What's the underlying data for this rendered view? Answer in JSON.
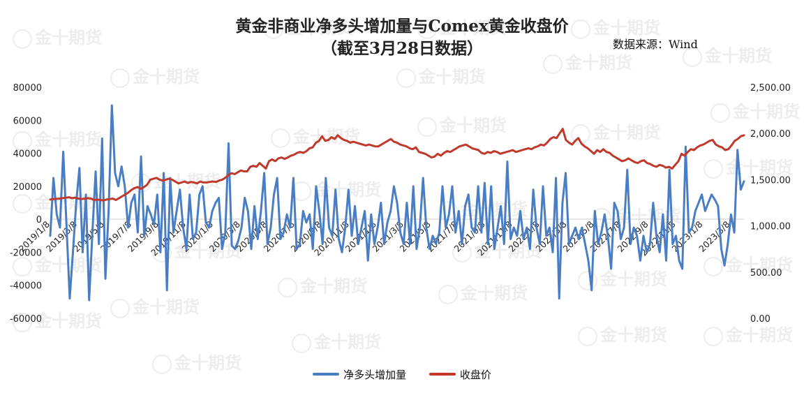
{
  "title_line1": "黄金非商业净多头增加量与Comex黄金收盘价",
  "title_line2": "（截至3月28日数据）",
  "source": "数据来源：Wind",
  "watermark": "金十期货",
  "colors": {
    "blue": "#4a7ec4",
    "red": "#c0392b"
  },
  "chart_data": {
    "type": "line",
    "title": "黄金非商业净多头增加量与Comex黄金收盘价",
    "subtitle": "（截至3月28日数据）",
    "xlabel": "",
    "ylabel": "",
    "legend_position": "bottom",
    "grid": false,
    "x_tick_labels": [
      "2019/1/8",
      "2019/3/8",
      "2019/5/8",
      "2019/7/8",
      "2019/9/8",
      "2019/11/8",
      "2020/1/8",
      "2020/3/8",
      "2020/5/8",
      "2020/7/8",
      "2020/9/8",
      "2020/11/8",
      "2021/1/8",
      "2021/3/8",
      "2021/5/8",
      "2021/7/8",
      "2021/9/8",
      "2021/11/8",
      "2022/1/8",
      "2022/3/8",
      "2022/5/8",
      "2022/7/8",
      "2022/9/8",
      "2022/11/8",
      "2023/1/8",
      "2023/3/8"
    ],
    "y_left": {
      "ylim": [
        -60000,
        80000
      ],
      "ticks": [
        "80000",
        "60000",
        "40000",
        "20000",
        "0",
        "-20000",
        "-40000",
        "-60000"
      ]
    },
    "y_right": {
      "ylim": [
        0,
        2500
      ],
      "ticks": [
        "2,500.00",
        "2,000.00",
        "1,500.00",
        "1,000.00",
        "500.00",
        "0.00"
      ]
    },
    "series": [
      {
        "name": "净多头增加量",
        "axis": "left",
        "color": "#4a7ec4",
        "values": [
          -10000,
          25000,
          3000,
          -5000,
          41000,
          -3000,
          -48000,
          -20000,
          10000,
          31000,
          -20000,
          15000,
          -49000,
          -8000,
          29000,
          -15000,
          49000,
          -36000,
          5000,
          69000,
          28000,
          20000,
          32000,
          20000,
          -5000,
          10000,
          15000,
          -8000,
          38000,
          -10000,
          8000,
          3000,
          -3000,
          15000,
          -20000,
          28000,
          -43000,
          25000,
          -8000,
          5000,
          18000,
          -5000,
          -18000,
          15000,
          -12000,
          -8000,
          15000,
          20000,
          -2000,
          -5000,
          5000,
          10000,
          13000,
          -18000,
          -8000,
          46000,
          -16000,
          -18000,
          -13000,
          -5000,
          13000,
          5000,
          -18000,
          8000,
          -12000,
          5000,
          28000,
          -15000,
          -5000,
          15000,
          25000,
          -12000,
          -8000,
          3000,
          -5000,
          25000,
          -18000,
          -15000,
          5000,
          -2000,
          3000,
          -18000,
          20000,
          5000,
          -15000,
          25000,
          -5000,
          -10000,
          18000,
          -12000,
          -20000,
          -5000,
          18000,
          -10000,
          8000,
          -15000,
          -5000,
          5000,
          -25000,
          3000,
          -15000,
          -5000,
          10000,
          -15000,
          -2000,
          5000,
          20000,
          10000,
          -8000,
          -15000,
          10000,
          -15000,
          20000,
          -18000,
          -5000,
          25000,
          -5000,
          -18000,
          -10000,
          -15000,
          -8000,
          20000,
          -5000,
          3000,
          20000,
          -8000,
          5000,
          -15000,
          8000,
          15000,
          -5000,
          -8000,
          20000,
          -8000,
          22000,
          -15000,
          20000,
          -18000,
          -5000,
          8000,
          -15000,
          35000,
          -12000,
          -5000,
          -10000,
          5000,
          -12000,
          -5000,
          -18000,
          18000,
          -5000,
          -15000,
          20000,
          -10000,
          -5000,
          -20000,
          25000,
          -48000,
          10000,
          28000,
          -15000,
          -10000,
          -5000,
          -12000,
          -5000,
          -15000,
          -25000,
          -43000,
          5000,
          -15000,
          -8000,
          3000,
          -10000,
          -30000,
          10000,
          5000,
          -12000,
          -5000,
          30000,
          -15000,
          -5000,
          -10000,
          -25000,
          -10000,
          -20000,
          -15000,
          10000,
          -10000,
          -20000,
          3000,
          -25000,
          30000,
          -15000,
          -10000,
          -25000,
          -30000,
          44000,
          -8000,
          -5000,
          5000,
          10000,
          15000,
          5000,
          10000,
          15000,
          12000,
          8000,
          -18000,
          -28000,
          -15000,
          3000,
          -8000,
          42000,
          18000,
          23000
        ]
      },
      {
        "name": "收盘价",
        "axis": "right",
        "color": "#c0392b",
        "values": [
          1285,
          1290,
          1292,
          1295,
          1300,
          1305,
          1310,
          1300,
          1305,
          1295,
          1290,
          1295,
          1300,
          1295,
          1280,
          1285,
          1280,
          1275,
          1285,
          1290,
          1295,
          1280,
          1300,
          1320,
          1340,
          1360,
          1390,
          1410,
          1420,
          1400,
          1420,
          1445,
          1500,
          1510,
          1520,
          1500,
          1490,
          1500,
          1510,
          1500,
          1480,
          1460,
          1470,
          1480,
          1465,
          1475,
          1470,
          1460,
          1480,
          1470,
          1470,
          1475,
          1480,
          1475,
          1490,
          1500,
          1520,
          1550,
          1570,
          1560,
          1580,
          1600,
          1590,
          1590,
          1640,
          1650,
          1640,
          1680,
          1650,
          1620,
          1700,
          1720,
          1700,
          1730,
          1740,
          1725,
          1740,
          1760,
          1770,
          1790,
          1800,
          1790,
          1810,
          1840,
          1850,
          1900,
          1920,
          1970,
          1920,
          1930,
          1960,
          1940,
          1980,
          1950,
          1930,
          1920,
          1900,
          1910,
          1900,
          1890,
          1880,
          1870,
          1880,
          1870,
          1860,
          1860,
          1880,
          1900,
          1920,
          1940,
          1910,
          1900,
          1880,
          1870,
          1860,
          1840,
          1830,
          1850,
          1800,
          1790,
          1780,
          1760,
          1740,
          1750,
          1780,
          1760,
          1790,
          1810,
          1800,
          1820,
          1840,
          1860,
          1870,
          1880,
          1860,
          1840,
          1830,
          1820,
          1790,
          1780,
          1800,
          1790,
          1810,
          1800,
          1780,
          1790,
          1800,
          1810,
          1820,
          1800,
          1810,
          1820,
          1830,
          1840,
          1830,
          1850,
          1860,
          1880,
          1870,
          1900,
          1940,
          1960,
          1950,
          2000,
          2050,
          1930,
          1900,
          1880,
          1920,
          1950,
          1890,
          1860,
          1840,
          1810,
          1780,
          1820,
          1800,
          1830,
          1800,
          1790,
          1760,
          1740,
          1720,
          1700,
          1710,
          1730,
          1710,
          1690,
          1680,
          1700,
          1710,
          1680,
          1670,
          1650,
          1640,
          1660,
          1650,
          1630,
          1640,
          1620,
          1660,
          1700,
          1780,
          1760,
          1800,
          1830,
          1820,
          1850,
          1870,
          1880,
          1900,
          1920,
          1930,
          1880,
          1860,
          1850,
          1820,
          1830,
          1870,
          1920,
          1940,
          1970,
          1980
        ]
      }
    ]
  }
}
